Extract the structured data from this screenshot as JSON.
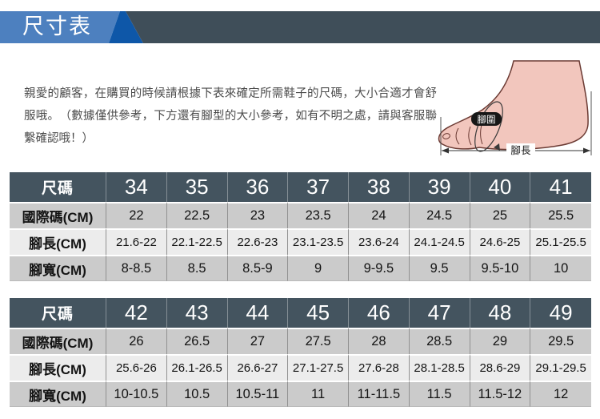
{
  "header": {
    "title": "尺寸表"
  },
  "intro": {
    "text": "親愛的顧客，在購買的時候請根據下表來確定所需鞋子的尺碼，大小合適才會舒服哦。　（數據僅供參考，下方還有腳型的大小參考，如有不明之處，請與客服聯繫確認哦！）"
  },
  "foot_diagram": {
    "girth_label": "腳圍",
    "length_label": "腳長"
  },
  "size_tables": [
    {
      "rows": [
        {
          "label": "尺碼",
          "values": [
            "34",
            "35",
            "36",
            "37",
            "38",
            "39",
            "40",
            "41"
          ]
        },
        {
          "label": "國際碼(CM)",
          "values": [
            "22",
            "22.5",
            "23",
            "23.5",
            "24",
            "24.5",
            "25",
            "25.5"
          ]
        },
        {
          "label": "腳長(CM)",
          "values": [
            "21.6-22",
            "22.1-22.5",
            "22.6-23",
            "23.1-23.5",
            "23.6-24",
            "24.1-24.5",
            "24.6-25",
            "25.1-25.5"
          ]
        },
        {
          "label": "腳寬(CM)",
          "values": [
            "8-8.5",
            "8.5",
            "8.5-9",
            "9",
            "9-9.5",
            "9.5",
            "9.5-10",
            "10"
          ]
        }
      ]
    },
    {
      "rows": [
        {
          "label": "尺碼",
          "values": [
            "42",
            "43",
            "44",
            "45",
            "46",
            "47",
            "48",
            "49"
          ]
        },
        {
          "label": "國際碼(CM)",
          "values": [
            "26",
            "26.5",
            "27",
            "27.5",
            "28",
            "28.5",
            "29",
            "29.5"
          ]
        },
        {
          "label": "腳長(CM)",
          "values": [
            "25.6-26",
            "26.1-26.5",
            "26.6-27",
            "27.1-27.5",
            "27.6-28",
            "28.1-28.5",
            "28.6-29",
            "29.1-29.5"
          ]
        },
        {
          "label": "腳寬(CM)",
          "values": [
            "10-10.5",
            "10.5",
            "10.5-11",
            "11",
            "11-11.5",
            "11.5",
            "11.5-12",
            "12"
          ]
        }
      ]
    }
  ],
  "colors": {
    "band_light_blue": "#4d80bf",
    "band_dark_blue": "#0e57a8",
    "band_slate": "#3f4e59",
    "table_header_bg": "#44545f",
    "row_gray": "#cbcbcb",
    "row_light": "#ececec",
    "foot_skin": "#f2c6bd",
    "foot_outline": "#6b3a33"
  }
}
